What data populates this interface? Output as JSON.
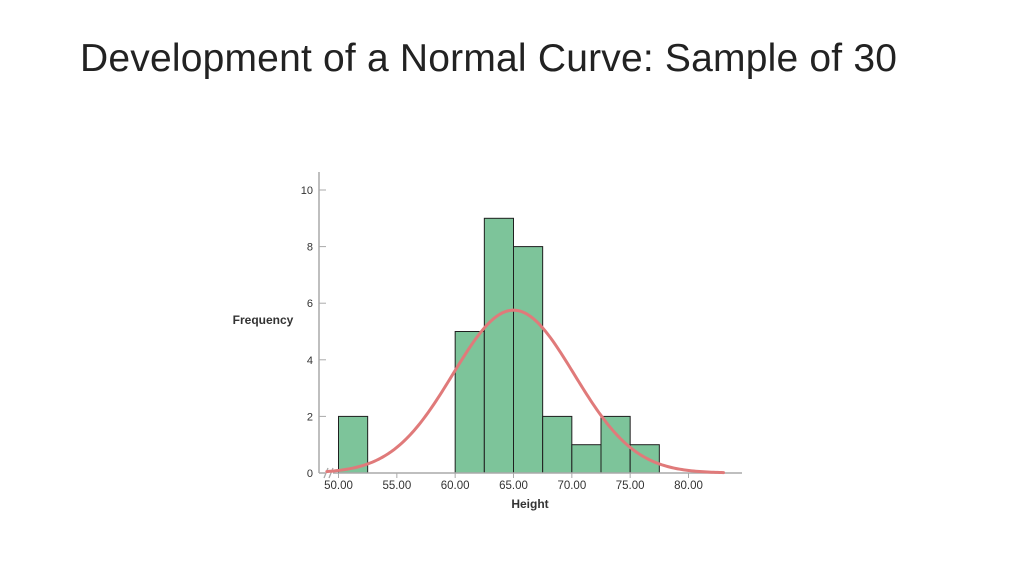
{
  "slide": {
    "title": "Development of a Normal Curve: Sample of 30"
  },
  "colors": {
    "bar_fill": "#7dc49a",
    "bar_stroke": "#1f1f1f",
    "curve": "#e07a7a",
    "axis": "#aaaaaa",
    "text": "#333333"
  },
  "chart_data": {
    "type": "bar",
    "title": "",
    "xlabel": "Height",
    "ylabel": "Frequency",
    "bin_width": 2.5,
    "bins": [
      {
        "start": 50.0,
        "end": 52.5,
        "count": 2
      },
      {
        "start": 52.5,
        "end": 55.0,
        "count": 0
      },
      {
        "start": 55.0,
        "end": 57.5,
        "count": 0
      },
      {
        "start": 57.5,
        "end": 60.0,
        "count": 0
      },
      {
        "start": 60.0,
        "end": 62.5,
        "count": 5
      },
      {
        "start": 62.5,
        "end": 65.0,
        "count": 9
      },
      {
        "start": 65.0,
        "end": 67.5,
        "count": 8
      },
      {
        "start": 67.5,
        "end": 70.0,
        "count": 2
      },
      {
        "start": 70.0,
        "end": 72.5,
        "count": 1
      },
      {
        "start": 72.5,
        "end": 75.0,
        "count": 2
      },
      {
        "start": 75.0,
        "end": 77.5,
        "count": 1
      }
    ],
    "normal_curve": {
      "mean": 65.0,
      "sd": 5.2,
      "n": 30,
      "x_from": 49.0,
      "x_to": 83.0
    },
    "x_ticks": [
      "50.00",
      "55.00",
      "60.00",
      "65.00",
      "70.00",
      "75.00",
      "80.00"
    ],
    "x_tick_values": [
      50,
      55,
      60,
      65,
      70,
      75,
      80
    ],
    "y_ticks": [
      "0",
      "2",
      "4",
      "6",
      "8",
      "10"
    ],
    "y_tick_values": [
      0,
      2,
      4,
      6,
      8,
      10
    ],
    "xlim": [
      48.5,
      84.5
    ],
    "ylim": [
      0,
      10
    ],
    "axis_break": true,
    "grid": false,
    "legend": "none"
  }
}
